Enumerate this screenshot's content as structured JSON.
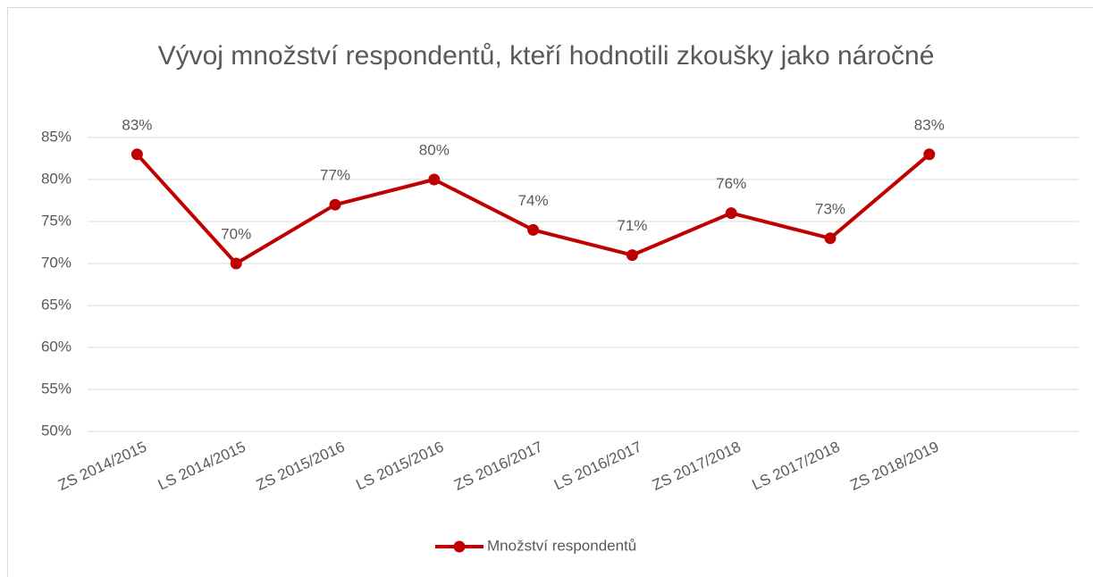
{
  "chart_data": {
    "type": "line",
    "title": "Vývoj množství respondentů, kteří hodnotili zkoušky jako náročné",
    "categories": [
      "ZS 2014/2015",
      "LS 2014/2015",
      "ZS 2015/2016",
      "LS 2015/2016",
      "ZS 2016/2017",
      "LS 2016/2017",
      "ZS 2017/2018",
      "LS 2017/2018",
      "ZS 2018/2019"
    ],
    "series": [
      {
        "name": "Množství respondentů",
        "color": "#c00000",
        "values": [
          83,
          70,
          77,
          80,
          74,
          71,
          76,
          73,
          83
        ],
        "value_labels": [
          "83%",
          "70%",
          "77%",
          "80%",
          "74%",
          "71%",
          "76%",
          "73%",
          "83%"
        ]
      }
    ],
    "ylim": [
      50,
      85
    ],
    "yticks": [
      {
        "value": 50,
        "label": "50%"
      },
      {
        "value": 55,
        "label": "55%"
      },
      {
        "value": 60,
        "label": "60%"
      },
      {
        "value": 65,
        "label": "65%"
      },
      {
        "value": 70,
        "label": "70%"
      },
      {
        "value": 75,
        "label": "75%"
      },
      {
        "value": 80,
        "label": "80%"
      },
      {
        "value": 85,
        "label": "85%"
      }
    ],
    "grid": true,
    "legend": "bottom"
  }
}
